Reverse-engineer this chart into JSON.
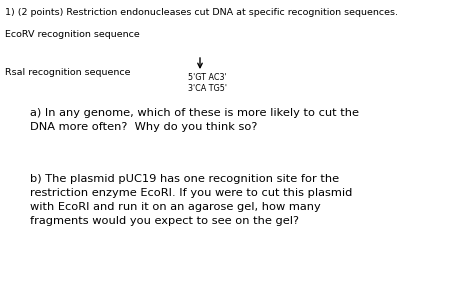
{
  "background_color": "#ffffff",
  "title_line": "1) (2 points) Restriction endonucleases cut DNA at specific recognition sequences.",
  "ecorv_label": "EcoRV recognition sequence",
  "rsal_label": "RsaI recognition sequence",
  "rsal_seq_top": "5'GT AC3'",
  "rsal_seq_bot": "3'CA TG5'",
  "question_a": "a) In any genome, which of these is more likely to cut the\nDNA more often?  Why do you think so?",
  "question_b": "b) The plasmid pUC19 has one recognition site for the\nrestriction enzyme EcoRI. If you were to cut this plasmid\nwith EcoRI and run it on an agarose gel, how many\nfragments would you expect to see on the gel?",
  "title_fontsize": 6.8,
  "label_fontsize": 6.8,
  "seq_fontsize": 5.8,
  "question_fontsize": 8.2
}
